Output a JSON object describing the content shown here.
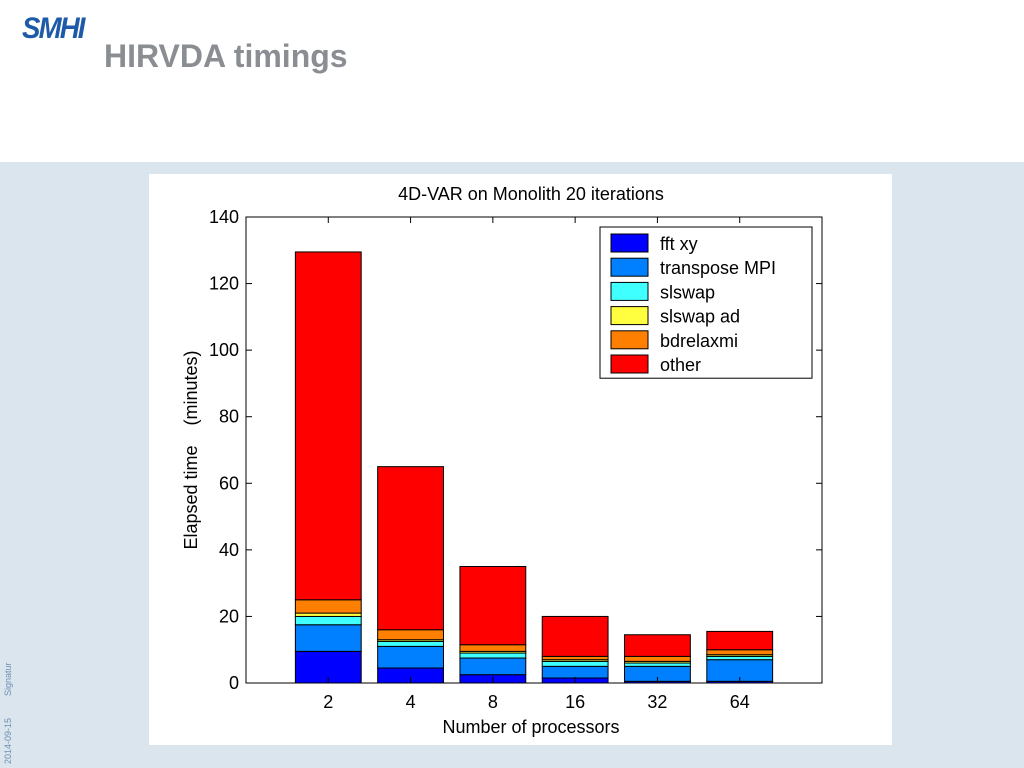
{
  "header": {
    "logo_text": "SMHI",
    "page_title": "HIRVDA timings"
  },
  "footer": {
    "date": "2014-09-15",
    "signature": "Signatur"
  },
  "colors": {
    "logo": "#1d5aa8",
    "title": "#8a8e93",
    "band": "#dbe5ee"
  },
  "chart_data": {
    "type": "bar",
    "stacked": true,
    "title": "4D-VAR on Monolith 20 iterations",
    "xlabel": "Number of processors",
    "ylabel": "Elapsed time    (minutes)",
    "categories": [
      "2",
      "4",
      "8",
      "16",
      "32",
      "64"
    ],
    "ylim": [
      0,
      140
    ],
    "yticks": [
      "0",
      "20",
      "40",
      "60",
      "80",
      "100",
      "120",
      "140"
    ],
    "legend_position": "top-right",
    "series": [
      {
        "name": "fft xy",
        "color": "#0000ff",
        "values": [
          9.5,
          4.5,
          2.5,
          1.5,
          0.5,
          0.5
        ]
      },
      {
        "name": "transpose MPI",
        "color": "#0080ff",
        "values": [
          8.0,
          6.5,
          5.0,
          3.5,
          4.5,
          6.5
        ]
      },
      {
        "name": "slswap",
        "color": "#40ffff",
        "values": [
          2.5,
          1.5,
          1.5,
          1.5,
          1.0,
          1.0
        ]
      },
      {
        "name": "slswap ad",
        "color": "#ffff40",
        "values": [
          1.0,
          0.5,
          0.5,
          0.5,
          0.5,
          0.5
        ]
      },
      {
        "name": "bdrelaxmi",
        "color": "#ff8000",
        "values": [
          4.0,
          3.0,
          2.0,
          1.0,
          1.5,
          1.5
        ]
      },
      {
        "name": "other",
        "color": "#ff0000",
        "values": [
          104.5,
          49.0,
          23.5,
          12.0,
          6.5,
          5.5
        ]
      }
    ]
  }
}
